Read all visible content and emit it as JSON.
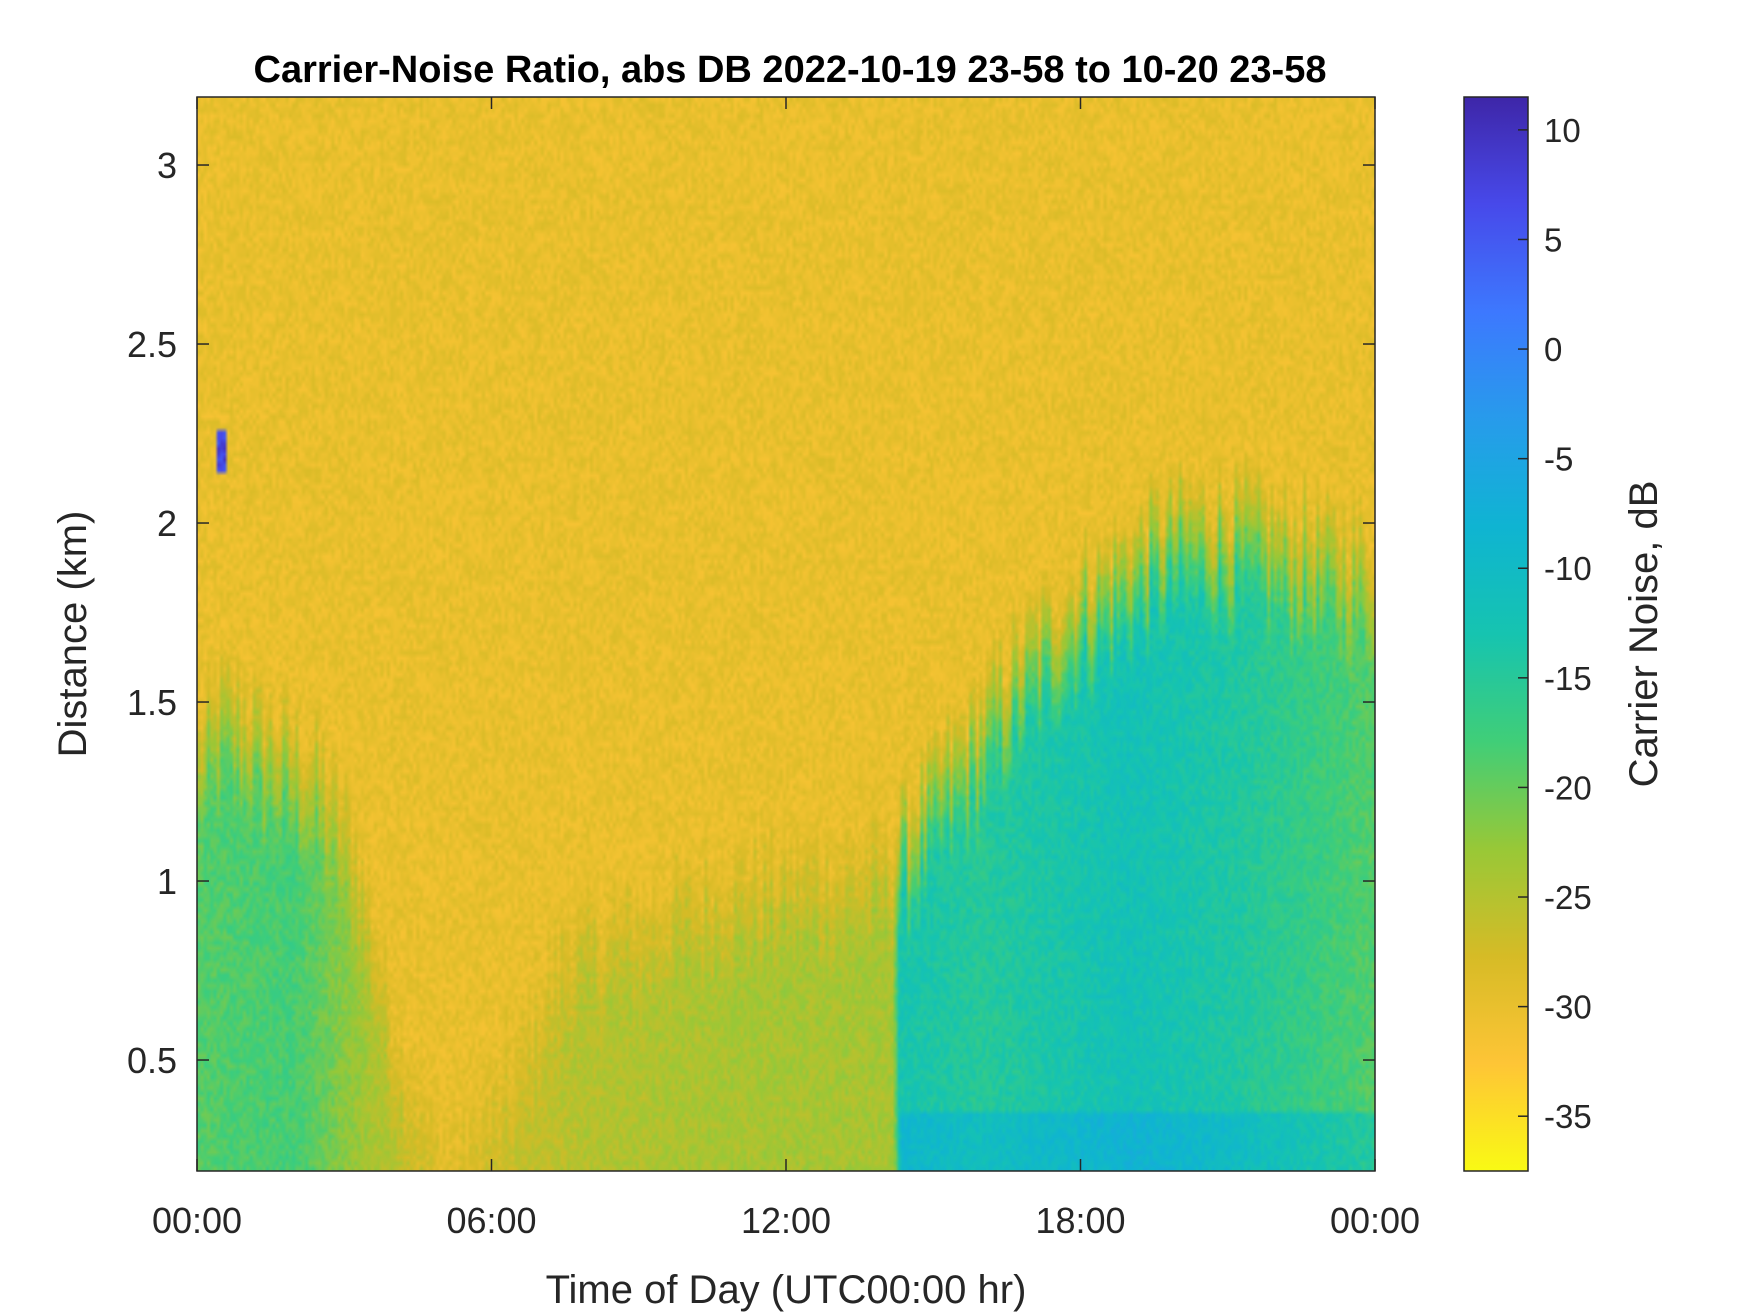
{
  "chart_data": {
    "type": "heatmap",
    "title": "Carrier-Noise Ratio, abs DB 2022-10-19 23-58 to 10-20 23-58",
    "xlabel": "Time of Day (UTC00:00 hr)",
    "ylabel": "Distance (km)",
    "xlim_hours": [
      0,
      24
    ],
    "ylim": [
      0.19,
      3.19
    ],
    "x_ticks": [
      {
        "value": 0,
        "label": "00:00"
      },
      {
        "value": 6,
        "label": "06:00"
      },
      {
        "value": 12,
        "label": "12:00"
      },
      {
        "value": 18,
        "label": "18:00"
      },
      {
        "value": 24,
        "label": "00:00"
      }
    ],
    "y_ticks": [
      {
        "value": 0.5,
        "label": "0.5"
      },
      {
        "value": 1,
        "label": "1"
      },
      {
        "value": 1.5,
        "label": "1.5"
      },
      {
        "value": 2,
        "label": "2"
      },
      {
        "value": 2.5,
        "label": "2.5"
      },
      {
        "value": 3,
        "label": "3"
      }
    ],
    "colorbar": {
      "label": "Carrier Noise, dB",
      "range": [
        -37.5,
        11.5
      ],
      "ticks": [
        {
          "value": 10,
          "label": "10"
        },
        {
          "value": 5,
          "label": "5"
        },
        {
          "value": 0,
          "label": "0"
        },
        {
          "value": -5,
          "label": "-5"
        },
        {
          "value": -10,
          "label": "-10"
        },
        {
          "value": -15,
          "label": "-15"
        },
        {
          "value": -20,
          "label": "-20"
        },
        {
          "value": -25,
          "label": "-25"
        },
        {
          "value": -30,
          "label": "-30"
        },
        {
          "value": -35,
          "label": "-35"
        }
      ],
      "colormap": "parula"
    },
    "background_level_db": -30,
    "boundary_layer_top_km": [
      {
        "hour": 0.0,
        "km": 1.45
      },
      {
        "hour": 0.5,
        "km": 1.6
      },
      {
        "hour": 1.5,
        "km": 1.5
      },
      {
        "hour": 2.5,
        "km": 1.4
      },
      {
        "hour": 3.2,
        "km": 1.2
      },
      {
        "hour": 4.0,
        "km": 0.7
      },
      {
        "hour": 5.0,
        "km": 0.35
      },
      {
        "hour": 6.5,
        "km": 0.6
      },
      {
        "hour": 7.5,
        "km": 0.95
      },
      {
        "hour": 9.0,
        "km": 1.0
      },
      {
        "hour": 10.5,
        "km": 1.1
      },
      {
        "hour": 12.0,
        "km": 1.12
      },
      {
        "hour": 13.5,
        "km": 1.15
      },
      {
        "hour": 14.2,
        "km": 1.18
      },
      {
        "hour": 15.0,
        "km": 1.35
      },
      {
        "hour": 16.0,
        "km": 1.55
      },
      {
        "hour": 17.0,
        "km": 1.75
      },
      {
        "hour": 18.0,
        "km": 1.9
      },
      {
        "hour": 19.0,
        "km": 2.0
      },
      {
        "hour": 20.0,
        "km": 2.1
      },
      {
        "hour": 21.0,
        "km": 2.1
      },
      {
        "hour": 22.5,
        "km": 2.05
      },
      {
        "hour": 24.0,
        "km": 2.0
      }
    ],
    "aerosol_core_db": [
      {
        "hour": 0.0,
        "db": -19
      },
      {
        "hour": 2.0,
        "db": -18
      },
      {
        "hour": 3.5,
        "db": -24
      },
      {
        "hour": 5.0,
        "db": -28
      },
      {
        "hour": 8.0,
        "db": -25
      },
      {
        "hour": 11.0,
        "db": -24
      },
      {
        "hour": 14.2,
        "db": -24
      },
      {
        "hour": 14.3,
        "db": -13
      },
      {
        "hour": 16.0,
        "db": -15
      },
      {
        "hour": 19.0,
        "db": -12
      },
      {
        "hour": 21.0,
        "db": -14
      },
      {
        "hour": 24.0,
        "db": -19
      }
    ],
    "annotations": [
      {
        "hour": 0.5,
        "km": 2.2,
        "db": 10
      }
    ]
  }
}
